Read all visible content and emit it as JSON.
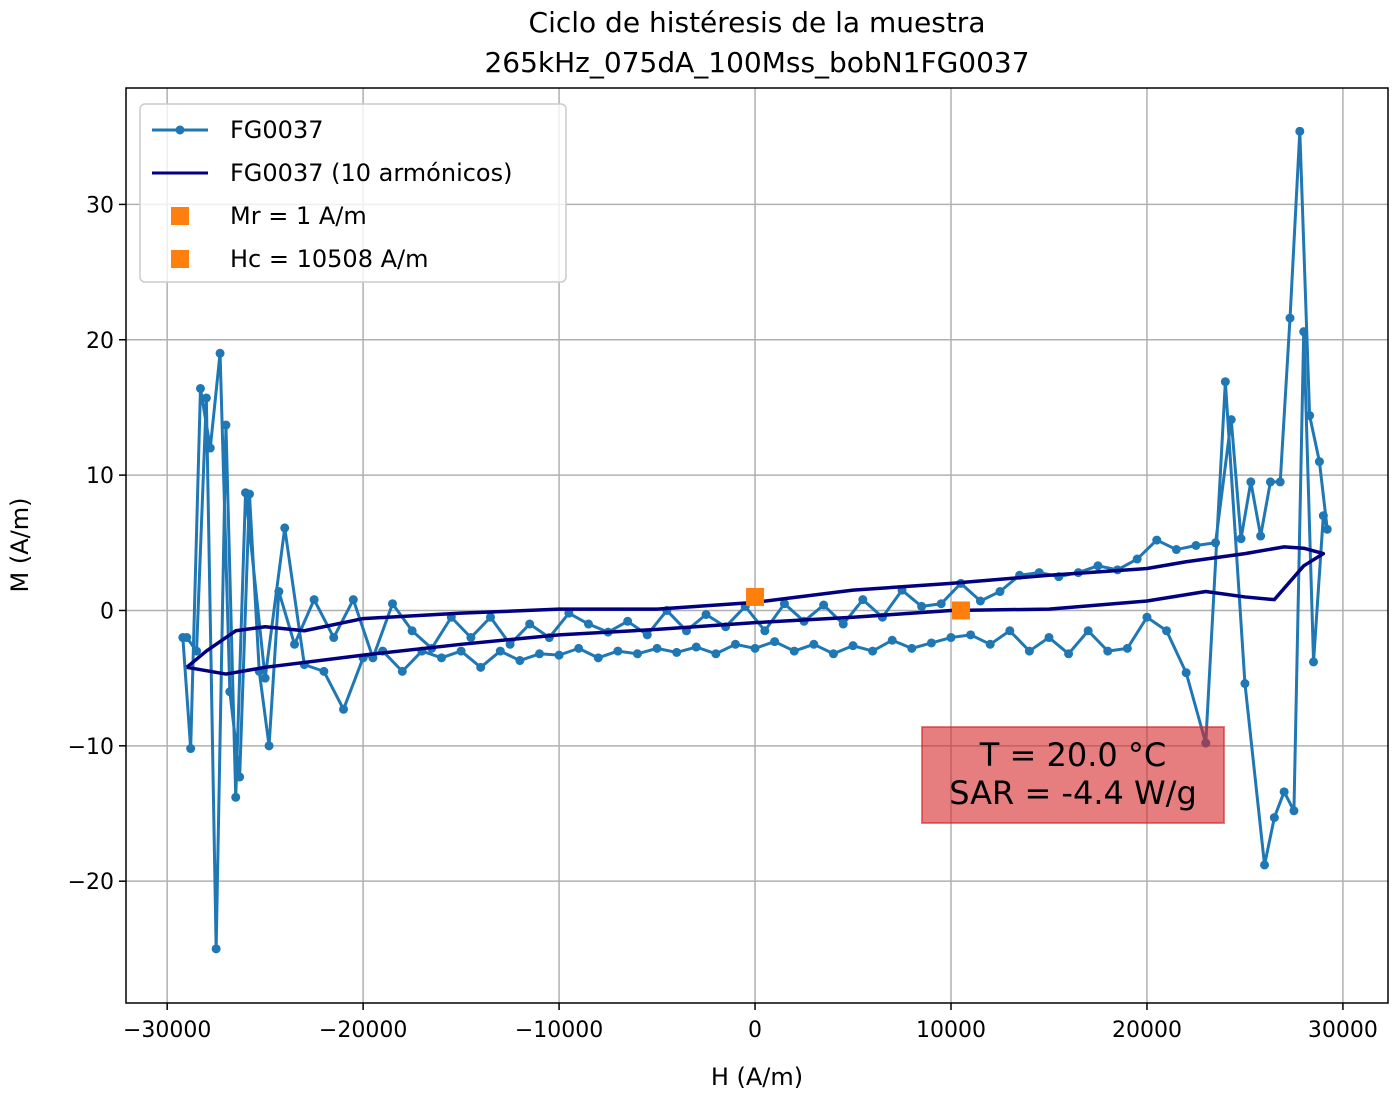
{
  "chart_data": {
    "type": "line",
    "title": [
      "Ciclo de histéresis de la muestra",
      "265kHz_075dA_100Mss_bobN1FG0037"
    ],
    "xlabel": "H (A/m)",
    "ylabel": "M (A/m)",
    "xlim": [
      -32100,
      32300
    ],
    "ylim": [
      -29,
      38.6
    ],
    "xticks": [
      {
        "value": -30000,
        "label": "−30000"
      },
      {
        "value": -20000,
        "label": "−20000"
      },
      {
        "value": -10000,
        "label": "−10000"
      },
      0,
      10000,
      20000,
      30000
    ],
    "yticks": [
      {
        "value": -20,
        "label": "−20"
      },
      {
        "value": -10,
        "label": "−10"
      },
      0,
      10,
      20,
      30
    ],
    "grid": true,
    "legend": "upper left",
    "series": [
      {
        "name": "FG0037",
        "color": "#1f77b4",
        "marker": "circle",
        "line": true,
        "x": [
          -29000,
          -28500,
          -28000,
          -27500,
          -27000,
          -26500,
          -26000,
          -25000,
          -24000,
          -23000,
          -22000,
          -21000,
          -20000,
          -19000,
          -18000,
          -17000,
          -16000,
          -15000,
          -14000,
          -13000,
          -12000,
          -11000,
          -10000,
          -9000,
          -8000,
          -7000,
          -6000,
          -5000,
          -4000,
          -3000,
          -2000,
          -1000,
          0,
          1000,
          2000,
          3000,
          4000,
          5000,
          6000,
          7000,
          8000,
          9000,
          10000,
          11000,
          12000,
          13000,
          14000,
          15000,
          16000,
          17000,
          18000,
          19000,
          20000,
          21000,
          22000,
          23000,
          24000,
          25000,
          26000,
          26500,
          27000,
          27500,
          28000,
          28500,
          29000,
          29200,
          28800,
          28300,
          27800,
          27300,
          26800,
          26300,
          25800,
          25300,
          24800,
          24300,
          23500,
          22500,
          21500,
          20500,
          19500,
          18500,
          17500,
          16500,
          15500,
          14500,
          13500,
          12500,
          11500,
          10500,
          9500,
          8500,
          7500,
          6500,
          5500,
          4500,
          3500,
          2500,
          1500,
          500,
          -500,
          -1500,
          -2500,
          -3500,
          -4500,
          -5500,
          -6500,
          -7500,
          -8500,
          -9500,
          -10500,
          -11500,
          -12500,
          -13500,
          -14500,
          -15500,
          -16500,
          -17500,
          -18500,
          -19500,
          -20500,
          -21500,
          -22500,
          -23500,
          -24300,
          -24800,
          -25300,
          -25800,
          -26300,
          -26800,
          -27300,
          -27800,
          -28300,
          -28800,
          -29200
        ],
        "values": [
          -2,
          -3,
          15.7,
          -25,
          13.7,
          -13.8,
          8.7,
          -5,
          6.1,
          -4,
          -4.5,
          -7.3,
          -3.5,
          -3,
          -4.5,
          -3,
          -3.5,
          -3,
          -4.2,
          -3,
          -3.7,
          -3.2,
          -3.3,
          -2.8,
          -3.5,
          -3,
          -3.2,
          -2.8,
          -3.1,
          -2.7,
          -3.2,
          -2.5,
          -2.8,
          -2.3,
          -3,
          -2.5,
          -3.2,
          -2.6,
          -3,
          -2.2,
          -2.8,
          -2.4,
          -2,
          -1.8,
          -2.5,
          -1.5,
          -3,
          -2,
          -3.2,
          -1.5,
          -3,
          -2.8,
          -0.5,
          -1.5,
          -4.6,
          -9.8,
          16.9,
          -5.4,
          -18.8,
          -15.3,
          -13.4,
          -14.8,
          20.6,
          -3.8,
          7,
          6,
          11,
          14.4,
          35.4,
          21.6,
          9.5,
          9.5,
          5.5,
          9.5,
          5.3,
          14.1,
          5,
          4.8,
          4.5,
          5.2,
          3.8,
          3,
          3.3,
          2.8,
          2.5,
          2.8,
          2.6,
          1.4,
          0.7,
          2,
          0.5,
          0.3,
          1.5,
          -0.5,
          0.8,
          -1,
          0.4,
          -0.8,
          0.5,
          -1.5,
          0.3,
          -1.2,
          -0.3,
          -1.5,
          0,
          -1.8,
          -0.8,
          -1.6,
          -1,
          -0.2,
          -2,
          -1,
          -2.5,
          -0.5,
          -2,
          -0.5,
          -2.8,
          -1.5,
          0.5,
          -3.5,
          0.8,
          -2,
          0.8,
          -2.5,
          1.4,
          -10,
          -4.5,
          8.6,
          -12.3,
          -6,
          19,
          12,
          16.4,
          -10.2,
          -2
        ]
      },
      {
        "name": "FG0037 (10 armónicos)",
        "color": "#000080",
        "marker": null,
        "line": true,
        "x": [
          -29000,
          -27000,
          -25000,
          -20000,
          -15000,
          -10000,
          -5000,
          0,
          5000,
          10000,
          15000,
          20000,
          23000,
          25000,
          26500,
          28000,
          29000,
          28000,
          27000,
          25000,
          22000,
          20000,
          15000,
          10000,
          5000,
          0,
          -5000,
          -10000,
          -15000,
          -20000,
          -23000,
          -25000,
          -26500,
          -28000,
          -29000
        ],
        "values": [
          -4.2,
          -4.7,
          -4.2,
          -3.3,
          -2.5,
          -1.8,
          -1.4,
          -0.9,
          -0.5,
          0,
          0.1,
          0.7,
          1.4,
          1,
          0.8,
          3.3,
          4.2,
          4.6,
          4.7,
          4.2,
          3.6,
          3.1,
          2.6,
          2,
          1.5,
          0.6,
          0.1,
          0.1,
          -0.2,
          -0.6,
          -1.5,
          -1.2,
          -1.5,
          -3,
          -4.2
        ]
      },
      {
        "name": "Mr = 1 A/m",
        "color": "#ff7f0e",
        "marker": "square",
        "line": false,
        "x": [
          0
        ],
        "values": [
          1
        ]
      },
      {
        "name": "Hc = 10508 A/m",
        "color": "#ff7f0e",
        "marker": "square",
        "line": false,
        "x": [
          10508
        ],
        "values": [
          0
        ]
      }
    ],
    "annotation": {
      "lines": [
        "T = 20.0 °C",
        "SAR = -4.4 W/g"
      ],
      "color": "#d62728"
    }
  }
}
